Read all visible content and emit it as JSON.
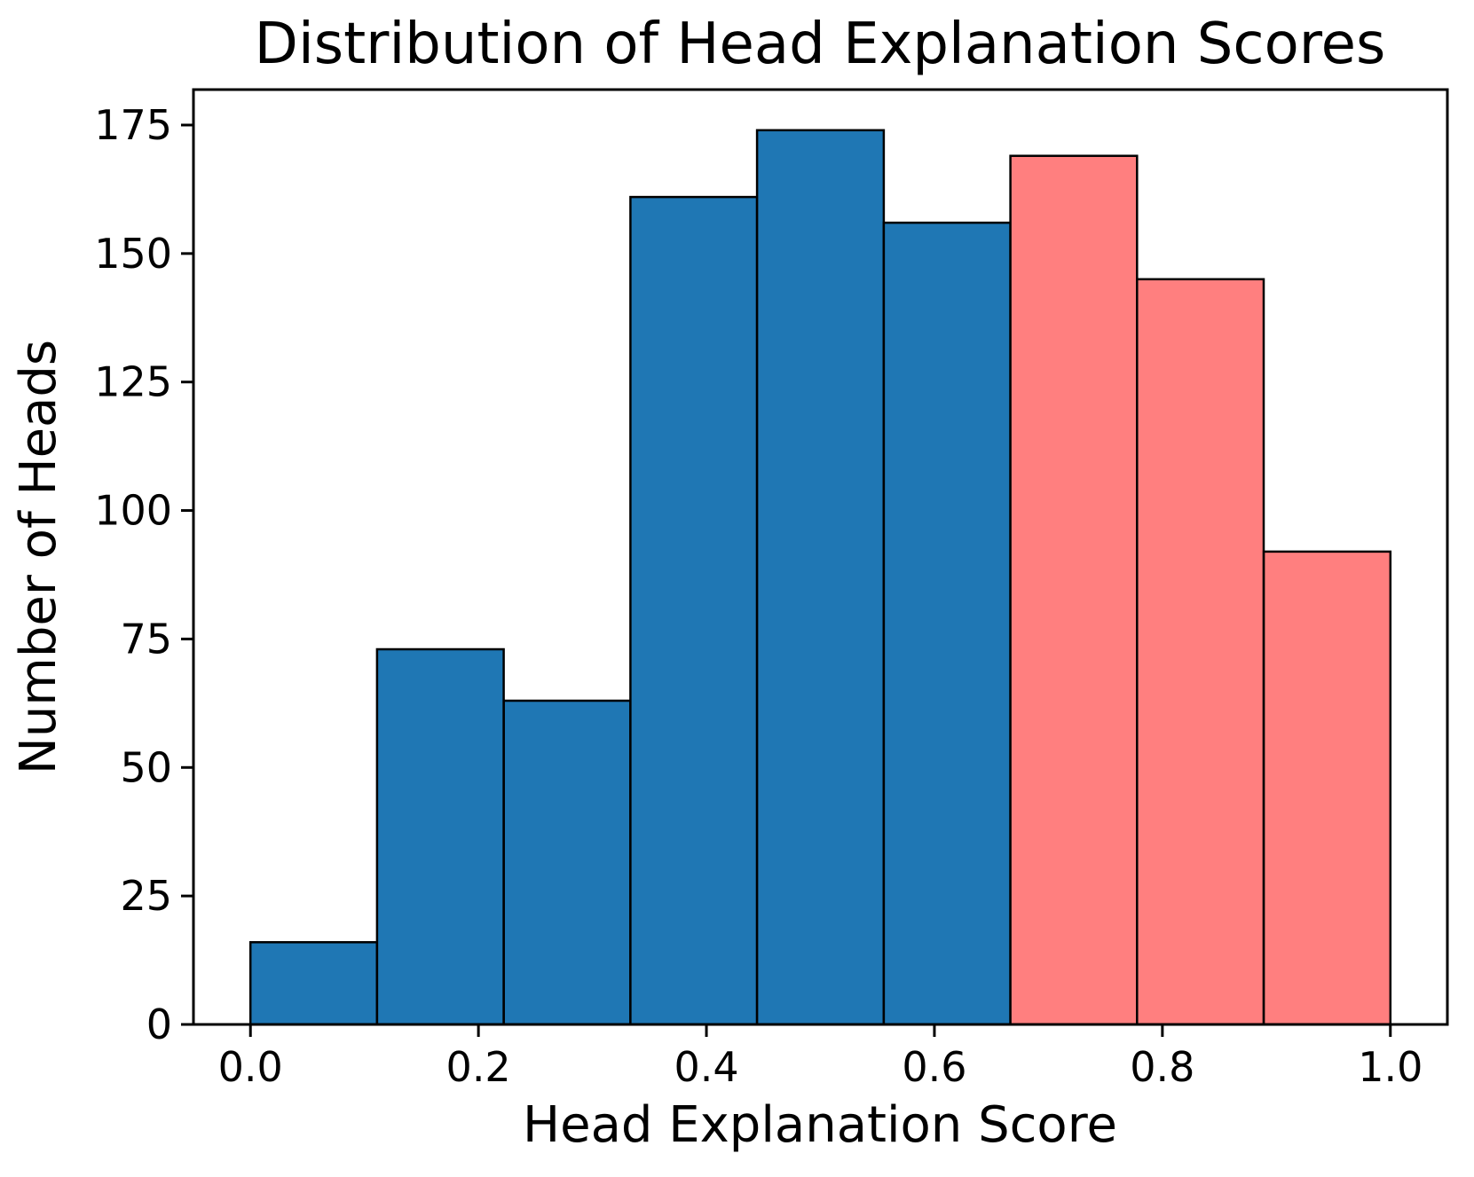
{
  "chart_data": {
    "type": "bar",
    "subtype": "histogram",
    "title": "Distribution of Head Explanation Scores",
    "xlabel": "Head Explanation Score",
    "ylabel": "Number of Heads",
    "bin_edges": [
      0.0,
      0.1111,
      0.2222,
      0.3333,
      0.4444,
      0.5556,
      0.6667,
      0.7778,
      0.8889,
      1.0
    ],
    "counts": [
      16,
      73,
      63,
      161,
      174,
      156,
      169,
      145,
      92
    ],
    "bar_colors": [
      "#1f77b4",
      "#1f77b4",
      "#1f77b4",
      "#1f77b4",
      "#1f77b4",
      "#1f77b4",
      "#ff7f7f",
      "#ff7f7f",
      "#ff7f7f"
    ],
    "colors": {
      "blue_bar": "#1f77b4",
      "salmon_bar": "#ff7f7f",
      "edge": "#000000",
      "background": "#ffffff"
    },
    "xlim": [
      -0.05,
      1.05
    ],
    "ylim": [
      0,
      181.9
    ],
    "xticks": {
      "values": [
        0.0,
        0.2,
        0.4,
        0.6,
        0.8,
        1.0
      ],
      "labels": [
        "0.0",
        "0.2",
        "0.4",
        "0.6",
        "0.8",
        "1.0"
      ]
    },
    "yticks": {
      "values": [
        0,
        25,
        50,
        75,
        100,
        125,
        150,
        175
      ],
      "labels": [
        "0",
        "25",
        "50",
        "75",
        "100",
        "125",
        "150",
        "175"
      ]
    },
    "grid": false,
    "legend": null
  }
}
